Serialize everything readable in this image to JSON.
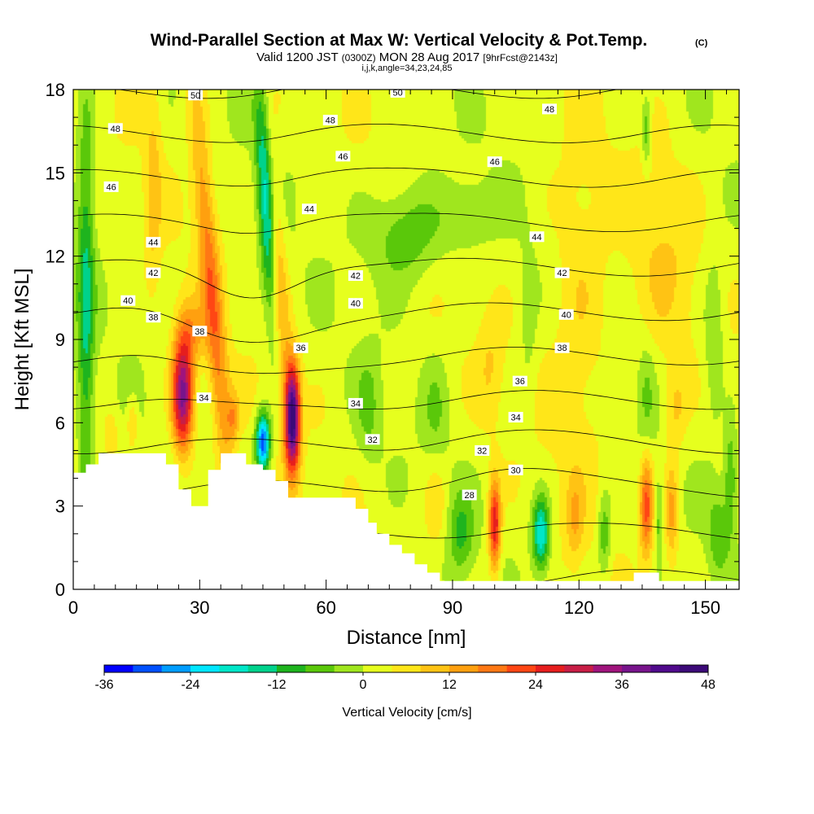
{
  "chart_data": {
    "type": "heatmap",
    "title": "Wind-Parallel Section at Max W: Vertical Velocity & Pot.Temp.",
    "title_mark": "(C)",
    "subtitle_parts": [
      "Valid 1200 JST",
      "(0300Z)",
      "MON 28 Aug 2017",
      "[9hrFcst@2143z]"
    ],
    "params": "i,j,k,angle=34,23,24,85",
    "xlabel": "Distance [nm]",
    "ylabel": "Height [Kft MSL]",
    "xlim": [
      0,
      158
    ],
    "ylim": [
      0,
      18
    ],
    "xticks": [
      0,
      30,
      60,
      90,
      120,
      150
    ],
    "yticks": [
      0,
      3,
      6,
      9,
      12,
      15,
      18
    ],
    "colorbar": {
      "label": "Vertical Velocity [cm/s]",
      "min": -36,
      "max": 48,
      "step": 4,
      "tick_labels": [
        "-36",
        "-24",
        "-12",
        "0",
        "12",
        "24",
        "36",
        "48"
      ],
      "colors": [
        "#0000ff",
        "#0050ff",
        "#009dff",
        "#00e6ff",
        "#00e6c8",
        "#00d28c",
        "#1eb41e",
        "#5ac80a",
        "#a0e61e",
        "#e6ff1e",
        "#ffe619",
        "#ffc314",
        "#ffa00f",
        "#ff7814",
        "#ff4614",
        "#e61e1e",
        "#c81e46",
        "#a0147d",
        "#78148c",
        "#500a8c",
        "#3c0a78"
      ]
    },
    "terrain": [
      [
        0,
        4.2
      ],
      [
        3,
        4.2
      ],
      [
        3,
        4.5
      ],
      [
        6,
        4.5
      ],
      [
        6,
        4.9
      ],
      [
        22,
        4.9
      ],
      [
        22,
        4.5
      ],
      [
        25,
        4.5
      ],
      [
        25,
        3.6
      ],
      [
        28,
        3.6
      ],
      [
        28,
        3.0
      ],
      [
        32,
        3.0
      ],
      [
        32,
        4.3
      ],
      [
        35,
        4.3
      ],
      [
        35,
        4.9
      ],
      [
        41,
        4.9
      ],
      [
        41,
        4.5
      ],
      [
        45,
        4.5
      ],
      [
        45,
        4.3
      ],
      [
        48,
        4.3
      ],
      [
        48,
        3.9
      ],
      [
        51,
        3.9
      ],
      [
        51,
        3.3
      ],
      [
        67,
        3.3
      ],
      [
        67,
        2.9
      ],
      [
        70,
        2.9
      ],
      [
        70,
        2.4
      ],
      [
        72,
        2.4
      ],
      [
        72,
        2.0
      ],
      [
        75,
        2.0
      ],
      [
        75,
        1.6
      ],
      [
        78,
        1.6
      ],
      [
        78,
        1.3
      ],
      [
        81,
        1.3
      ],
      [
        81,
        0.9
      ],
      [
        84,
        0.9
      ],
      [
        84,
        0.6
      ],
      [
        87,
        0.6
      ],
      [
        87,
        0.3
      ],
      [
        133,
        0.3
      ],
      [
        133,
        0.6
      ],
      [
        139,
        0.6
      ],
      [
        139,
        0.3
      ],
      [
        158,
        0.3
      ],
      [
        158,
        0
      ]
    ],
    "theta_contours": [
      {
        "value": 28,
        "label": "28",
        "labels_at": [
          [
            94,
            3.4
          ]
        ]
      },
      {
        "value": 30,
        "label": "30",
        "labels_at": [
          [
            105,
            4.3
          ]
        ]
      },
      {
        "value": 32,
        "label": "32",
        "labels_at": [
          [
            71,
            5.4
          ],
          [
            97,
            5.0
          ]
        ]
      },
      {
        "value": 34,
        "label": "34",
        "labels_at": [
          [
            31,
            6.9
          ],
          [
            67,
            6.7
          ],
          [
            105,
            6.2
          ]
        ]
      },
      {
        "value": 36,
        "label": "36",
        "labels_at": [
          [
            54,
            8.7
          ],
          [
            106,
            7.5
          ]
        ]
      },
      {
        "value": 38,
        "label": "38",
        "labels_at": [
          [
            19,
            9.8
          ],
          [
            30,
            9.3
          ],
          [
            116,
            8.7
          ]
        ]
      },
      {
        "value": 40,
        "label": "40",
        "labels_at": [
          [
            13,
            10.4
          ],
          [
            67,
            10.3
          ],
          [
            117,
            9.9
          ]
        ]
      },
      {
        "value": 42,
        "label": "42",
        "labels_at": [
          [
            19,
            11.4
          ],
          [
            67,
            11.3
          ],
          [
            116,
            11.4
          ]
        ]
      },
      {
        "value": 44,
        "label": "44",
        "labels_at": [
          [
            19,
            12.5
          ],
          [
            56,
            13.7
          ],
          [
            110,
            12.7
          ]
        ]
      },
      {
        "value": 46,
        "label": "46",
        "labels_at": [
          [
            9,
            14.5
          ],
          [
            64,
            15.6
          ],
          [
            100,
            15.4
          ]
        ]
      },
      {
        "value": 48,
        "label": "48",
        "labels_at": [
          [
            10,
            16.6
          ],
          [
            61,
            16.9
          ],
          [
            113,
            17.3
          ]
        ]
      },
      {
        "value": 50,
        "label": "50",
        "labels_at": [
          [
            29,
            17.8
          ],
          [
            77,
            17.9
          ]
        ]
      }
    ],
    "velocity_features": [
      {
        "x": 26,
        "y": 7.0,
        "sx": 2.5,
        "sy": 2.0,
        "w": 36
      },
      {
        "x": 28,
        "y": 9.3,
        "sx": 3.5,
        "sy": 1.2,
        "w": 10
      },
      {
        "x": 52,
        "y": 6.2,
        "sx": 1.8,
        "sy": 1.9,
        "w": 44
      },
      {
        "x": 45,
        "y": 5.3,
        "sx": 1.6,
        "sy": 1.0,
        "w": -34
      },
      {
        "x": 38,
        "y": 6.2,
        "sx": 1.5,
        "sy": 0.8,
        "w": 10
      },
      {
        "x": 33,
        "y": 10.5,
        "sx": 2.4,
        "sy": 7.5,
        "w": 16,
        "tilt": -0.55,
        "y0": 10.5
      },
      {
        "x": 48,
        "y": 12.5,
        "sx": 2.0,
        "sy": 5.5,
        "w": 14,
        "tilt": -0.45,
        "y0": 12.5
      },
      {
        "x": 46,
        "y": 14.0,
        "sx": 2.0,
        "sy": 4.5,
        "w": -24,
        "tilt": -0.35,
        "y0": 14.0
      },
      {
        "x": 3,
        "y": 10.0,
        "sx": 2.0,
        "sy": 8.0,
        "w": -14
      },
      {
        "x": 19,
        "y": 14.5,
        "sx": 2.0,
        "sy": 4.0,
        "w": 7
      },
      {
        "x": 14,
        "y": 6.0,
        "sx": 1.2,
        "sy": 0.8,
        "w": 8
      },
      {
        "x": 9,
        "y": 5.6,
        "sx": 1.5,
        "sy": 0.8,
        "w": 6
      },
      {
        "x": 79,
        "y": 12.8,
        "sx": 9.0,
        "sy": 1.8,
        "w": -10
      },
      {
        "x": 94,
        "y": 13.5,
        "sx": 6.0,
        "sy": 1.2,
        "w": -6
      },
      {
        "x": 100,
        "y": 2.3,
        "sx": 1.4,
        "sy": 1.6,
        "w": 26
      },
      {
        "x": 111,
        "y": 2.0,
        "sx": 2.0,
        "sy": 1.3,
        "w": -22
      },
      {
        "x": 92,
        "y": 2.0,
        "sx": 3.0,
        "sy": 1.5,
        "w": -10
      },
      {
        "x": 86,
        "y": 3.0,
        "sx": 2.5,
        "sy": 1.5,
        "w": 6
      },
      {
        "x": 136,
        "y": 3.0,
        "sx": 1.6,
        "sy": 1.8,
        "w": 20
      },
      {
        "x": 142,
        "y": 2.8,
        "sx": 1.6,
        "sy": 1.8,
        "w": 12
      },
      {
        "x": 139,
        "y": 2.5,
        "sx": 1.0,
        "sy": 1.5,
        "w": -8
      },
      {
        "x": 126,
        "y": 2.0,
        "sx": 1.5,
        "sy": 1.5,
        "w": -10
      },
      {
        "x": 119,
        "y": 2.5,
        "sx": 2.0,
        "sy": 1.5,
        "w": 8
      },
      {
        "x": 153,
        "y": 2.0,
        "sx": 2.5,
        "sy": 1.5,
        "w": -8
      },
      {
        "x": 120,
        "y": 10.0,
        "sx": 7.0,
        "sy": 6.0,
        "w": 6
      },
      {
        "x": 140,
        "y": 12.0,
        "sx": 8.0,
        "sy": 4.0,
        "w": 5
      },
      {
        "x": 136,
        "y": 7.0,
        "sx": 2.0,
        "sy": 2.0,
        "w": -6
      },
      {
        "x": 143,
        "y": 6.5,
        "sx": 2.5,
        "sy": 1.5,
        "w": 7
      },
      {
        "x": 152,
        "y": 9.0,
        "sx": 2.5,
        "sy": 3.0,
        "w": -7
      },
      {
        "x": 136,
        "y": 16.5,
        "sx": 1.0,
        "sy": 1.2,
        "w": -10
      },
      {
        "x": 70,
        "y": 6.5,
        "sx": 3.0,
        "sy": 2.0,
        "w": -6
      },
      {
        "x": 99,
        "y": 8.0,
        "sx": 3.0,
        "sy": 2.0,
        "w": 5
      },
      {
        "x": 86,
        "y": 6.5,
        "sx": 3.0,
        "sy": 2.0,
        "w": -5
      },
      {
        "x": 108,
        "y": 9.5,
        "sx": 2.0,
        "sy": 3.0,
        "w": -4
      },
      {
        "x": 156,
        "y": 4.0,
        "sx": 1.5,
        "sy": 2.0,
        "w": -10
      }
    ]
  }
}
